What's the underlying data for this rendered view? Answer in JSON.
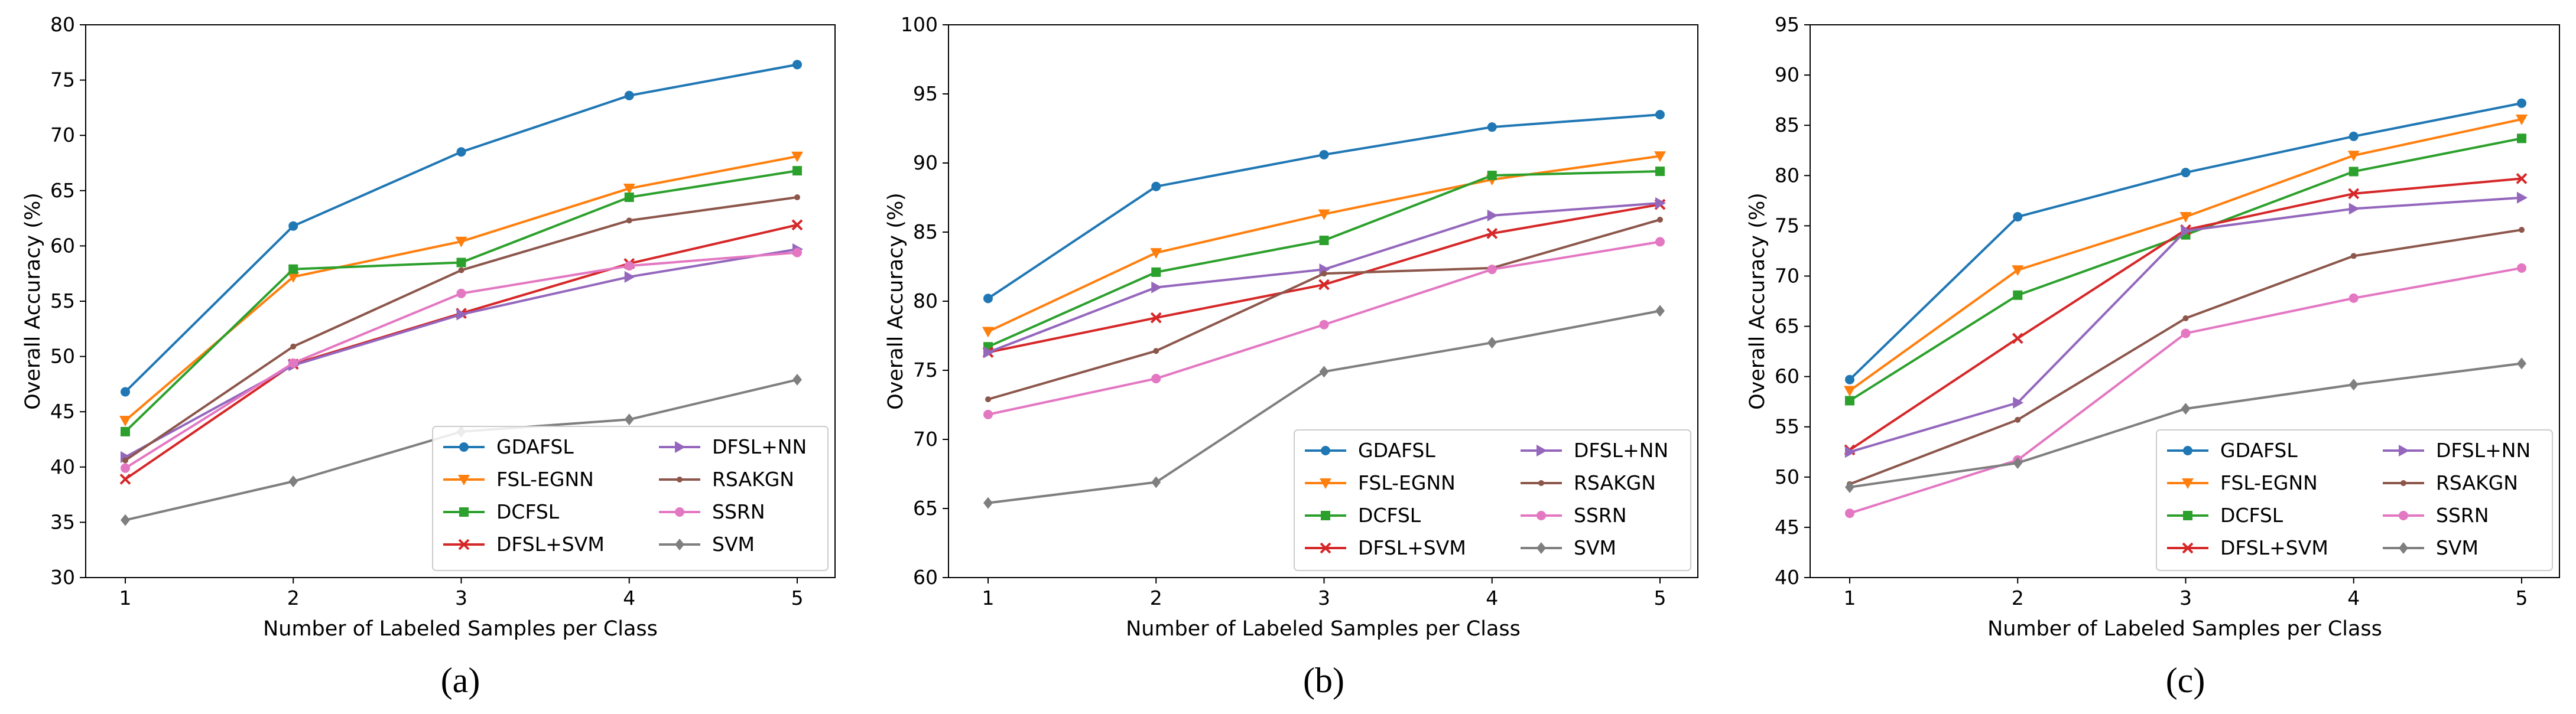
{
  "chart_data": [
    {
      "type": "line",
      "panel": "a",
      "caption": "(a)",
      "xlabel": "Number of Labeled Samples per Class",
      "ylabel": "Overall Accuracy (%)",
      "x": [
        1,
        2,
        3,
        4,
        5
      ],
      "xticks": [
        "1",
        "2",
        "3",
        "4",
        "5"
      ],
      "ylim": [
        30,
        80
      ],
      "yticks": [
        30,
        35,
        40,
        45,
        50,
        55,
        60,
        65,
        70,
        75,
        80
      ],
      "legend_position": "lower-right",
      "series": [
        {
          "name": "GDAFSL",
          "color": "#1f77b4",
          "marker": "circle",
          "values": [
            46.8,
            61.8,
            68.5,
            73.6,
            76.4
          ]
        },
        {
          "name": "FSL-EGNN",
          "color": "#ff7f0e",
          "marker": "triangle-down",
          "values": [
            44.2,
            57.2,
            60.4,
            65.2,
            68.1
          ]
        },
        {
          "name": "DCFSL",
          "color": "#2ca02c",
          "marker": "square",
          "values": [
            43.2,
            57.9,
            58.5,
            64.4,
            66.8
          ]
        },
        {
          "name": "DFSL+SVM",
          "color": "#d62728",
          "marker": "x",
          "values": [
            38.9,
            49.3,
            53.9,
            58.4,
            61.9
          ]
        },
        {
          "name": "DFSL+NN",
          "color": "#9467bd",
          "marker": "triangle-right",
          "values": [
            40.9,
            49.2,
            53.8,
            57.2,
            59.7
          ]
        },
        {
          "name": "RSAKGN",
          "color": "#8c564b",
          "marker": "small-dot",
          "values": [
            40.6,
            50.9,
            57.8,
            62.3,
            64.4
          ]
        },
        {
          "name": "SSRN",
          "color": "#e377c2",
          "marker": "circle",
          "values": [
            39.9,
            49.4,
            55.7,
            58.2,
            59.4
          ]
        },
        {
          "name": "SVM",
          "color": "#7f7f7f",
          "marker": "diamond",
          "values": [
            35.2,
            38.7,
            43.2,
            44.3,
            47.9
          ]
        }
      ]
    },
    {
      "type": "line",
      "panel": "b",
      "caption": "(b)",
      "xlabel": "Number of Labeled Samples per Class",
      "ylabel": "Overall Accuracy (%)",
      "x": [
        1,
        2,
        3,
        4,
        5
      ],
      "xticks": [
        "1",
        "2",
        "3",
        "4",
        "5"
      ],
      "ylim": [
        60,
        100
      ],
      "yticks": [
        60,
        65,
        70,
        75,
        80,
        85,
        90,
        95,
        100
      ],
      "legend_position": "lower-right",
      "series": [
        {
          "name": "GDAFSL",
          "color": "#1f77b4",
          "marker": "circle",
          "values": [
            80.2,
            88.3,
            90.6,
            92.6,
            93.5
          ]
        },
        {
          "name": "FSL-EGNN",
          "color": "#ff7f0e",
          "marker": "triangle-down",
          "values": [
            77.8,
            83.5,
            86.3,
            88.8,
            90.5
          ]
        },
        {
          "name": "DCFSL",
          "color": "#2ca02c",
          "marker": "square",
          "values": [
            76.7,
            82.1,
            84.4,
            89.1,
            89.4
          ]
        },
        {
          "name": "DFSL+SVM",
          "color": "#d62728",
          "marker": "x",
          "values": [
            76.3,
            78.8,
            81.2,
            84.9,
            87.0
          ]
        },
        {
          "name": "DFSL+NN",
          "color": "#9467bd",
          "marker": "triangle-right",
          "values": [
            76.3,
            81.0,
            82.3,
            86.2,
            87.1
          ]
        },
        {
          "name": "RSAKGN",
          "color": "#8c564b",
          "marker": "small-dot",
          "values": [
            72.9,
            76.4,
            82.0,
            82.4,
            85.9
          ]
        },
        {
          "name": "SSRN",
          "color": "#e377c2",
          "marker": "circle",
          "values": [
            71.8,
            74.4,
            78.3,
            82.3,
            84.3
          ]
        },
        {
          "name": "SVM",
          "color": "#7f7f7f",
          "marker": "diamond",
          "values": [
            65.4,
            66.9,
            74.9,
            77.0,
            79.3
          ]
        }
      ]
    },
    {
      "type": "line",
      "panel": "c",
      "caption": "(c)",
      "xlabel": "Number of Labeled Samples per Class",
      "ylabel": "Overall Accuracy (%)",
      "x": [
        1,
        2,
        3,
        4,
        5
      ],
      "xticks": [
        "1",
        "2",
        "3",
        "4",
        "5"
      ],
      "ylim": [
        40,
        95
      ],
      "yticks": [
        40,
        45,
        50,
        55,
        60,
        65,
        70,
        75,
        80,
        85,
        90,
        95
      ],
      "legend_position": "lower-right",
      "series": [
        {
          "name": "GDAFSL",
          "color": "#1f77b4",
          "marker": "circle",
          "values": [
            59.7,
            75.9,
            80.3,
            83.9,
            87.2
          ]
        },
        {
          "name": "FSL-EGNN",
          "color": "#ff7f0e",
          "marker": "triangle-down",
          "values": [
            58.6,
            70.6,
            75.9,
            82.0,
            85.6
          ]
        },
        {
          "name": "DCFSL",
          "color": "#2ca02c",
          "marker": "square",
          "values": [
            57.6,
            68.1,
            74.1,
            80.4,
            83.7
          ]
        },
        {
          "name": "DFSL+SVM",
          "color": "#d62728",
          "marker": "x",
          "values": [
            52.7,
            63.8,
            74.6,
            78.2,
            79.7
          ]
        },
        {
          "name": "DFSL+NN",
          "color": "#9467bd",
          "marker": "triangle-right",
          "values": [
            52.5,
            57.4,
            74.5,
            76.7,
            77.8
          ]
        },
        {
          "name": "RSAKGN",
          "color": "#8c564b",
          "marker": "small-dot",
          "values": [
            49.3,
            55.7,
            65.8,
            72.0,
            74.6
          ]
        },
        {
          "name": "SSRN",
          "color": "#e377c2",
          "marker": "circle",
          "values": [
            46.4,
            51.7,
            64.3,
            67.8,
            70.8
          ]
        },
        {
          "name": "SVM",
          "color": "#7f7f7f",
          "marker": "diamond",
          "values": [
            49.0,
            51.4,
            56.8,
            59.2,
            61.3
          ]
        }
      ]
    }
  ]
}
